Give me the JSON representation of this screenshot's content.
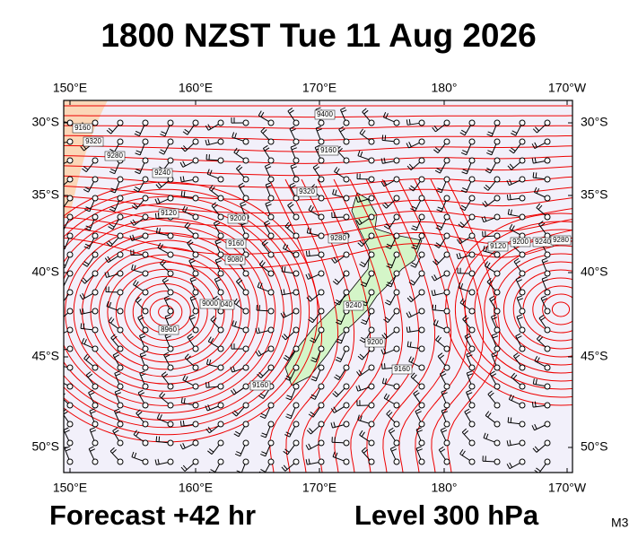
{
  "header": {
    "title": "1800 NZST Tue 11 Aug 2026"
  },
  "map": {
    "top_labels": [
      "150°E",
      "160°E",
      "170°E",
      "180°",
      "170°W"
    ],
    "bottom_labels": [
      "150°E",
      "160°E",
      "170°E",
      "180°",
      "170°W"
    ],
    "left_labels": [
      "30°S",
      "35°S",
      "40°S",
      "45°S",
      "50°S"
    ],
    "right_labels": [
      "30°S",
      "35°S",
      "40°S",
      "45°S",
      "50°S"
    ],
    "contour_labels": [
      "9400",
      "9160",
      "9320",
      "9280",
      "9160",
      "9240",
      "9320",
      "9120",
      "9200",
      "9160",
      "9080",
      "9040",
      "9000",
      "8960",
      "9280",
      "9240",
      "9200",
      "9160",
      "9160",
      "9120",
      "9200",
      "9240",
      "9280"
    ]
  },
  "footer": {
    "forecast": "Forecast +42 hr",
    "level": "Level 300 hPa",
    "code": "M3"
  }
}
